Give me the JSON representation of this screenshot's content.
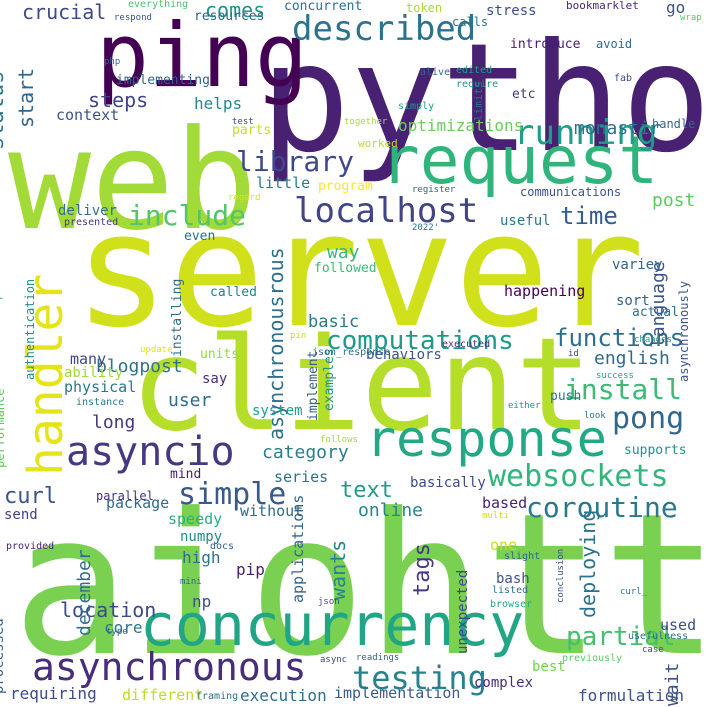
{
  "word_cloud": {
    "words": [
      {
        "text": "aiohttp",
        "color": "#7ad151"
      },
      {
        "text": "server",
        "color": "#d0e11c"
      },
      {
        "text": "python",
        "color": "#482173"
      },
      {
        "text": "web",
        "color": "#a2da37"
      },
      {
        "text": "client",
        "color": "#b5de2b"
      },
      {
        "text": "request",
        "color": "#2fb47c"
      },
      {
        "text": "ping",
        "color": "#440154"
      },
      {
        "text": "concurrency",
        "color": "#21a685"
      },
      {
        "text": "handler",
        "color": "#e5e419"
      },
      {
        "text": "response",
        "color": "#22a884"
      },
      {
        "text": "asynchronous",
        "color": "#472d7b"
      },
      {
        "text": "asyncio",
        "color": "#443983"
      },
      {
        "text": "localhost",
        "color": "#414487"
      },
      {
        "text": "running",
        "color": "#1e9c89"
      },
      {
        "text": "described",
        "color": "#2c728e"
      },
      {
        "text": "testing",
        "color": "#26828e"
      },
      {
        "text": "websockets",
        "color": "#31b57b"
      },
      {
        "text": "coroutine",
        "color": "#2a788e"
      },
      {
        "text": "simple",
        "color": "#38598c"
      },
      {
        "text": "library",
        "color": "#3e4989"
      },
      {
        "text": "include",
        "color": "#52c569"
      },
      {
        "text": "install",
        "color": "#3bbb75"
      },
      {
        "text": "pong",
        "color": "#31688e"
      },
      {
        "text": "computations",
        "color": "#1f998a"
      },
      {
        "text": "functions",
        "color": "#2d708e"
      },
      {
        "text": "partial",
        "color": "#44bf70"
      },
      {
        "text": "time",
        "color": "#365d8d"
      },
      {
        "text": "steps",
        "color": "#414487"
      },
      {
        "text": "crucial",
        "color": "#3e4a89"
      },
      {
        "text": "comes",
        "color": "#21918c"
      },
      {
        "text": "curl",
        "color": "#3a548c"
      },
      {
        "text": "text",
        "color": "#1f9e89"
      },
      {
        "text": "blogpost",
        "color": "#2c728e"
      },
      {
        "text": "location",
        "color": "#3e4989"
      },
      {
        "text": "category",
        "color": "#287d8e"
      },
      {
        "text": "user",
        "color": "#2f6c8e"
      },
      {
        "text": "long",
        "color": "#443983"
      },
      {
        "text": "online",
        "color": "#25848e"
      },
      {
        "text": "english",
        "color": "#306a8e"
      },
      {
        "text": "post",
        "color": "#5ec962"
      },
      {
        "text": "basic",
        "color": "#2a788e"
      },
      {
        "text": "way",
        "color": "#35b779"
      },
      {
        "text": "helps",
        "color": "#23898e"
      },
      {
        "text": "monastir",
        "color": "#2e6f8e"
      },
      {
        "text": "context",
        "color": "#3b528b"
      },
      {
        "text": "optimizations",
        "color": "#6ccd5a"
      },
      {
        "text": "wants",
        "color": "#25848e"
      },
      {
        "text": "deploying",
        "color": "#2c728e"
      },
      {
        "text": "wait",
        "color": "#3b528b"
      },
      {
        "text": "language",
        "color": "#3b528b"
      },
      {
        "text": "status",
        "color": "#2a788e"
      },
      {
        "text": "start",
        "color": "#32658e"
      },
      {
        "text": "december",
        "color": "#2e6e8e"
      },
      {
        "text": "asynchronousrous",
        "color": "#2d718e"
      },
      {
        "text": "tags",
        "color": "#453781"
      },
      {
        "text": "package",
        "color": "#2f6b8e"
      },
      {
        "text": "execution",
        "color": "#2e6e8e"
      },
      {
        "text": "implementation",
        "color": "#375b8d"
      },
      {
        "text": "formulation",
        "color": "#3b528b"
      },
      {
        "text": "complex",
        "color": "#472c7a"
      },
      {
        "text": "different",
        "color": "#b8de29"
      },
      {
        "text": "requiring",
        "color": "#3e4c8a"
      },
      {
        "text": "processed",
        "color": "#34618d"
      },
      {
        "text": "core",
        "color": "#2b758e"
      },
      {
        "text": "high",
        "color": "#2e6f8e"
      },
      {
        "text": "pip",
        "color": "#481f70"
      },
      {
        "text": "np",
        "color": "#3e4c8a"
      },
      {
        "text": "numpy",
        "color": "#238a8d"
      },
      {
        "text": "speedy",
        "color": "#29af7f"
      },
      {
        "text": "send",
        "color": "#424186"
      },
      {
        "text": "parallel",
        "color": "#472d7b"
      },
      {
        "text": "without",
        "color": "#2e6d8e"
      },
      {
        "text": "series",
        "color": "#2d708e"
      },
      {
        "text": "mind",
        "color": "#481b6d"
      },
      {
        "text": "system",
        "color": "#1fa187"
      },
      {
        "text": "physical",
        "color": "#2a778e"
      },
      {
        "text": "ability",
        "color": "#a0da39"
      },
      {
        "text": "many",
        "color": "#3f4788"
      },
      {
        "text": "say",
        "color": "#46307e"
      },
      {
        "text": "units",
        "color": "#95d840"
      },
      {
        "text": "behaviors",
        "color": "#3a548c"
      },
      {
        "text": "called",
        "color": "#26828e"
      },
      {
        "text": "installing",
        "color": "#2e6f8e"
      },
      {
        "text": "even",
        "color": "#2e6e8e"
      },
      {
        "text": "deliver",
        "color": "#2d718e"
      },
      {
        "text": "little",
        "color": "#287c8e"
      },
      {
        "text": "program",
        "color": "#fde725"
      },
      {
        "text": "parts",
        "color": "#c2df23"
      },
      {
        "text": "implementing",
        "color": "#33628d"
      },
      {
        "text": "resources",
        "color": "#33628d"
      },
      {
        "text": "concurrent",
        "color": "#2d718e"
      },
      {
        "text": "stress",
        "color": "#3d4e8a"
      },
      {
        "text": "token",
        "color": "#a8db34"
      },
      {
        "text": "calls",
        "color": "#2b748e"
      },
      {
        "text": "go",
        "color": "#3b528b"
      },
      {
        "text": "introduce",
        "color": "#481d6f"
      },
      {
        "text": "avoid",
        "color": "#2f6c8e"
      },
      {
        "text": "etc",
        "color": "#453882"
      },
      {
        "text": "handle",
        "color": "#32648e"
      },
      {
        "text": "communications",
        "color": "#3b528b"
      },
      {
        "text": "useful",
        "color": "#2a788e"
      },
      {
        "text": "followed",
        "color": "#3bbb75"
      },
      {
        "text": "happening",
        "color": "#440154"
      },
      {
        "text": "sort",
        "color": "#33638d"
      },
      {
        "text": "actual",
        "color": "#2c718e"
      },
      {
        "text": "variey",
        "color": "#33628d"
      },
      {
        "text": "asynchronously",
        "color": "#3a538b"
      },
      {
        "text": "push",
        "color": "#2c738e"
      },
      {
        "text": "supports",
        "color": "#21918c"
      },
      {
        "text": "basically",
        "color": "#3e4a89"
      },
      {
        "text": "based",
        "color": "#482475"
      },
      {
        "text": "one",
        "color": "#c8e020"
      },
      {
        "text": "bash",
        "color": "#3b528b"
      },
      {
        "text": "unexpected",
        "color": "#3e4989"
      },
      {
        "text": "applications",
        "color": "#33628d"
      },
      {
        "text": "examples",
        "color": "#1f948c"
      },
      {
        "text": "implement",
        "color": "#355f8d"
      },
      {
        "text": "used",
        "color": "#3d4d8a"
      },
      {
        "text": "best",
        "color": "#73d056"
      },
      {
        "text": "everything",
        "color": "#4ac16d"
      },
      {
        "text": "respond",
        "color": "#3b528b"
      },
      {
        "text": "bookmarklet",
        "color": "#482878"
      },
      {
        "text": "wrap",
        "color": "#5ec962"
      },
      {
        "text": "php",
        "color": "#31688e"
      },
      {
        "text": "test",
        "color": "#3e4989"
      },
      {
        "text": "together",
        "color": "#a5db36"
      },
      {
        "text": "worked",
        "color": "#b5de2b"
      },
      {
        "text": "limits",
        "color": "#2c738e"
      },
      {
        "text": "alive",
        "color": "#31688e"
      },
      {
        "text": "edited",
        "color": "#1f9e89"
      },
      {
        "text": "require",
        "color": "#20928c"
      },
      {
        "text": "simply",
        "color": "#1f9a8a"
      },
      {
        "text": "fab",
        "color": "#3e4a89"
      },
      {
        "text": "regard",
        "color": "#dde318"
      },
      {
        "text": "register",
        "color": "#33638d"
      },
      {
        "text": "presented",
        "color": "#453882"
      },
      {
        "text": "2022'",
        "color": "#2a788e"
      },
      {
        "text": "parallelism",
        "color": "#3bbb75"
      },
      {
        "text": "authentication",
        "color": "#21918c"
      },
      {
        "text": "performance",
        "color": "#5ec962"
      },
      {
        "text": "instance",
        "color": "#2a788e"
      },
      {
        "text": "update",
        "color": "#e2e418"
      },
      {
        "text": "pin",
        "color": "#bddf26"
      },
      {
        "text": "json_response",
        "color": "#2f6b8e"
      },
      {
        "text": "executed",
        "color": "#472c7a"
      },
      {
        "text": "changes",
        "color": "#1fa088"
      },
      {
        "text": "id",
        "color": "#3e4a89"
      },
      {
        "text": "success",
        "color": "#20a386"
      },
      {
        "text": "either",
        "color": "#20928c"
      },
      {
        "text": "look",
        "color": "#2c738e"
      },
      {
        "text": "follows",
        "color": "#a5db36"
      },
      {
        "text": "multi",
        "color": "#d2e21b"
      },
      {
        "text": "provided",
        "color": "#482071"
      },
      {
        "text": "docs",
        "color": "#365c8d"
      },
      {
        "text": "mini",
        "color": "#34608d"
      },
      {
        "text": "json",
        "color": "#3e4989"
      },
      {
        "text": "type",
        "color": "#365d8d"
      },
      {
        "text": "framing",
        "color": "#2c718e"
      },
      {
        "text": "async",
        "color": "#3f4889"
      },
      {
        "text": "readings",
        "color": "#33638d"
      },
      {
        "text": "conclusion",
        "color": "#3b528b"
      },
      {
        "text": "slight",
        "color": "#32658e"
      },
      {
        "text": "listed",
        "color": "#2d708e"
      },
      {
        "text": "browser",
        "color": "#22a785"
      },
      {
        "text": "curl_",
        "color": "#2a788e"
      },
      {
        "text": "previously",
        "color": "#5ec962"
      },
      {
        "text": "usefulness",
        "color": "#2c718e"
      },
      {
        "text": "case",
        "color": "#3e4a89"
      }
    ]
  }
}
